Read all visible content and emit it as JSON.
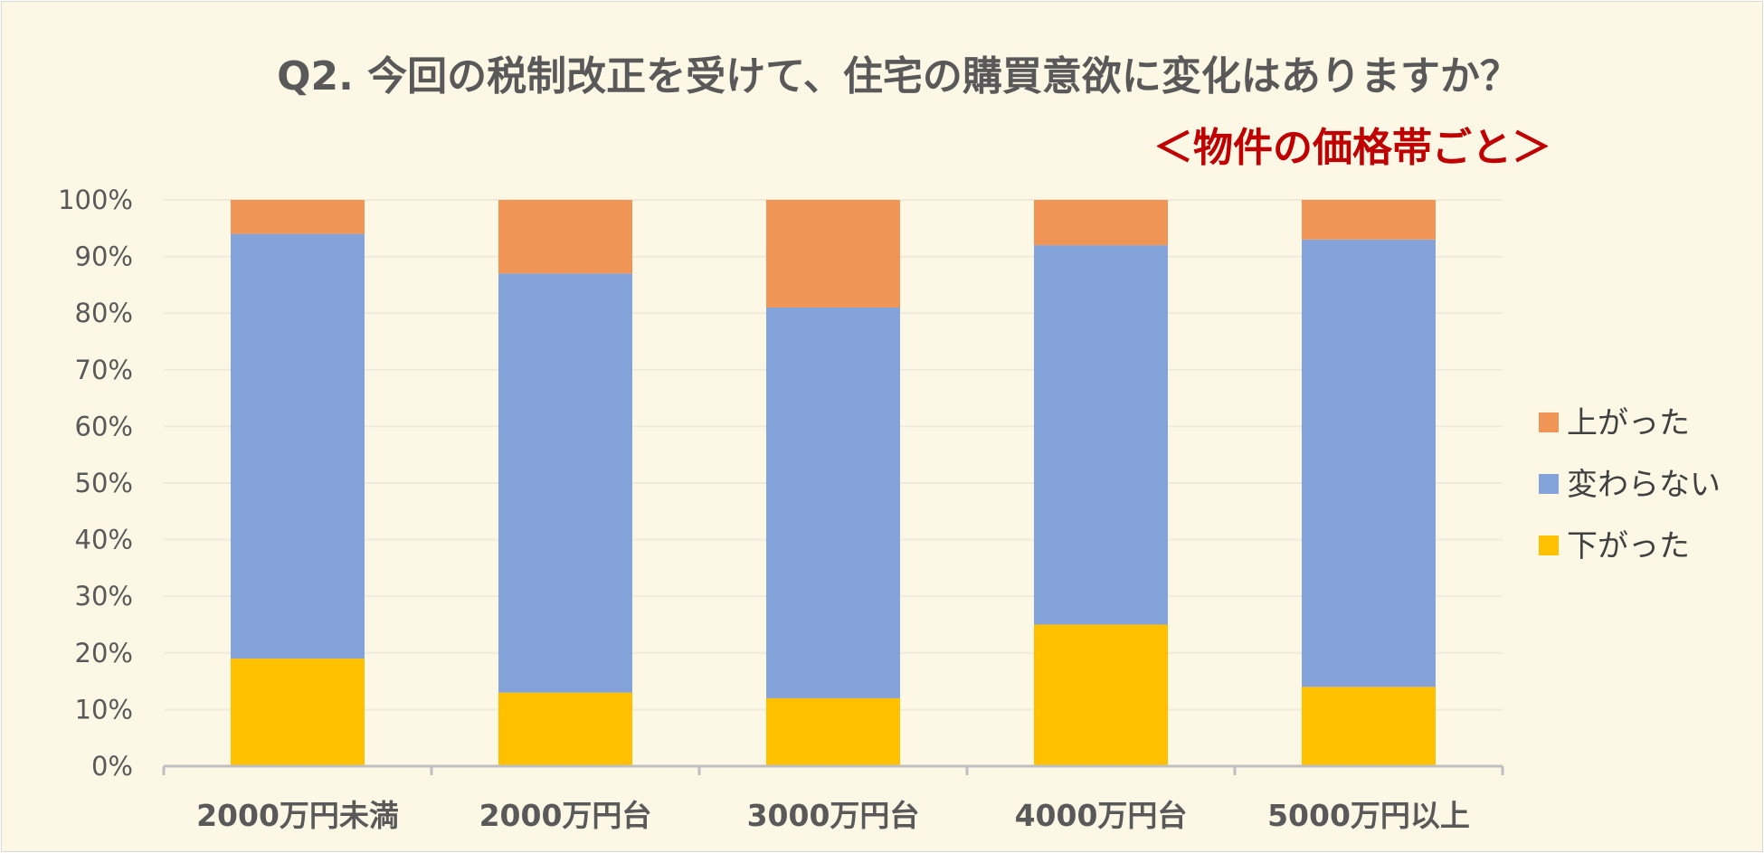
{
  "chart_data": {
    "type": "bar",
    "stacked": true,
    "title": "Q2. 今回の税制改正を受けて、住宅の購買意欲に変化はありますか？",
    "subtitle": "＜物件の価格帯ごと＞",
    "categories": [
      "2000万円未満",
      "2000万円台",
      "3000万円台",
      "4000万円台",
      "5000万円以上"
    ],
    "series": [
      {
        "name": "下がった",
        "values": [
          19,
          13,
          12,
          25,
          14
        ],
        "color": "#ffc000"
      },
      {
        "name": "変わらない",
        "values": [
          75,
          74,
          69,
          67,
          79
        ],
        "color": "#83a3da"
      },
      {
        "name": "上がった",
        "values": [
          6,
          13,
          19,
          8,
          7
        ],
        "color": "#f19556"
      }
    ],
    "legend_order": [
      "上がった",
      "変わらない",
      "下がった"
    ],
    "legend_position": "right",
    "ylim": [
      0,
      100
    ],
    "y_ticks": [
      "0%",
      "10%",
      "20%",
      "30%",
      "40%",
      "50%",
      "60%",
      "70%",
      "80%",
      "90%",
      "100%"
    ],
    "grid": true,
    "xlabel": "",
    "ylabel": ""
  }
}
